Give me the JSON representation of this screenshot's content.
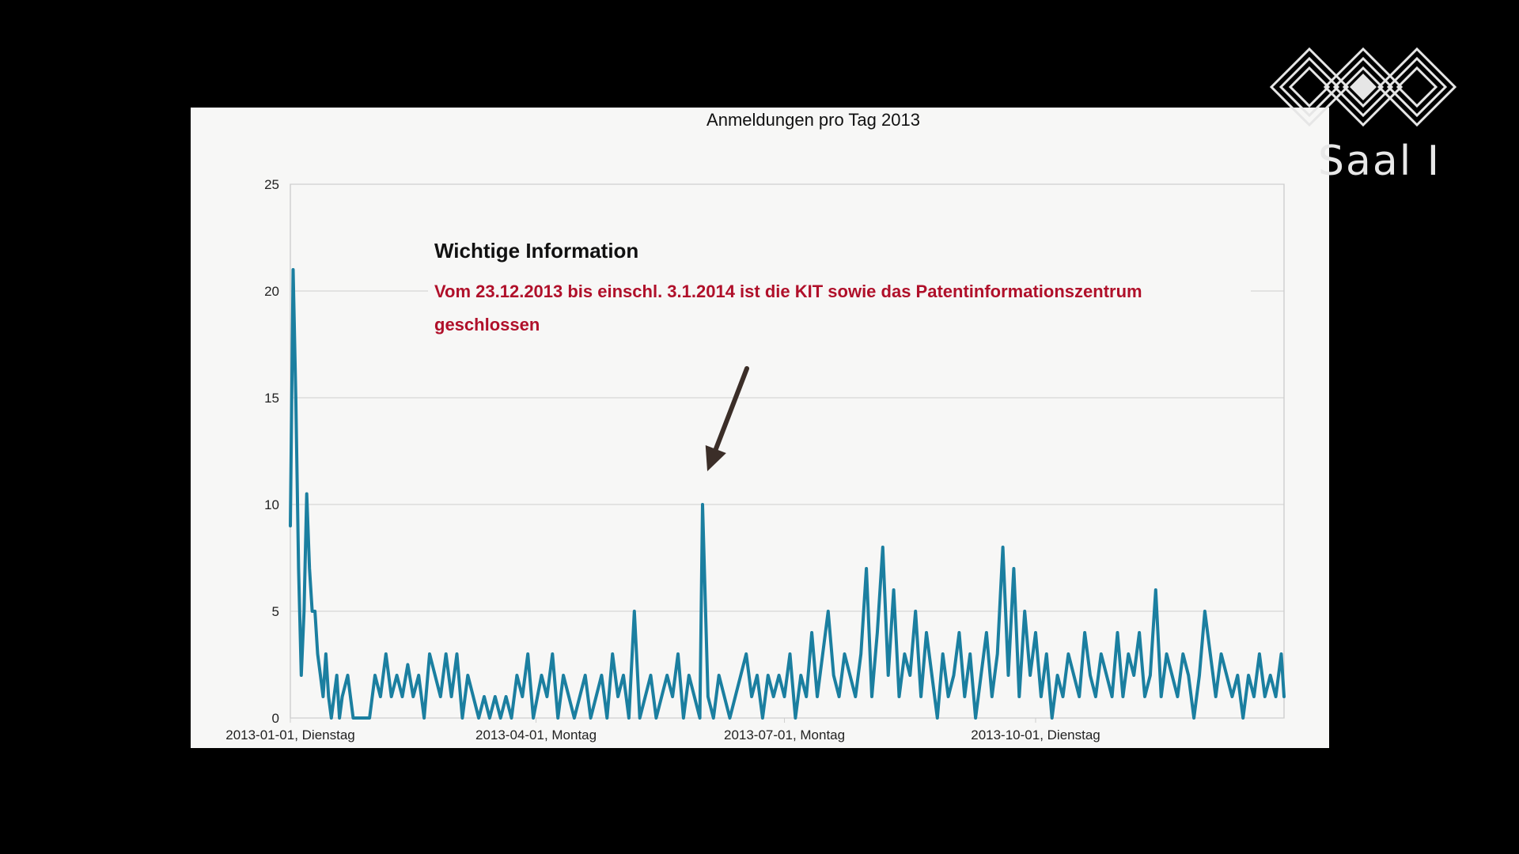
{
  "slide": {
    "room_label": "Saal I",
    "logo_icon": "event-logo-icon"
  },
  "annotation": {
    "heading": "Wichtige Information",
    "text_line1": "Vom 23.12.2013 bis einschl. 3.1.2014 ist die KIT sowie das Patentinformationszentrum",
    "text_line2": "geschlossen",
    "arrow_target": {
      "x": "2013-06-01",
      "y": 10
    }
  },
  "colors": {
    "series": "#1b7fa0",
    "annotation_text": "#b0102a",
    "arrow": "#3b2e28"
  },
  "chart_data": {
    "type": "line",
    "title": "Anmeldungen pro Tag 2013",
    "xlabel": "",
    "ylabel": "",
    "ylim": [
      0,
      25
    ],
    "yticks": [
      0,
      5,
      10,
      15,
      20,
      25
    ],
    "xlim": [
      "2013-01-01",
      "2013-12-31"
    ],
    "xticks": [
      {
        "date": "2013-01-01",
        "label": "2013-01-01, Dienstag"
      },
      {
        "date": "2013-04-01",
        "label": "2013-04-01, Montag"
      },
      {
        "date": "2013-07-01",
        "label": "2013-07-01, Montag"
      },
      {
        "date": "2013-10-01",
        "label": "2013-10-01, Dienstag"
      }
    ],
    "grid": true,
    "legend": "none",
    "series": [
      {
        "points": [
          [
            "2013-01-01",
            9
          ],
          [
            "2013-01-02",
            21
          ],
          [
            "2013-01-03",
            15
          ],
          [
            "2013-01-04",
            7
          ],
          [
            "2013-01-05",
            2
          ],
          [
            "2013-01-06",
            5
          ],
          [
            "2013-01-07",
            10.5
          ],
          [
            "2013-01-08",
            7
          ],
          [
            "2013-01-09",
            5
          ],
          [
            "2013-01-10",
            5
          ],
          [
            "2013-01-11",
            3
          ],
          [
            "2013-01-12",
            2
          ],
          [
            "2013-01-13",
            1
          ],
          [
            "2013-01-14",
            3
          ],
          [
            "2013-01-15",
            1
          ],
          [
            "2013-01-16",
            0
          ],
          [
            "2013-01-17",
            1
          ],
          [
            "2013-01-18",
            2
          ],
          [
            "2013-01-19",
            0
          ],
          [
            "2013-01-20",
            1
          ],
          [
            "2013-01-22",
            2
          ],
          [
            "2013-01-24",
            0
          ],
          [
            "2013-01-27",
            0
          ],
          [
            "2013-01-30",
            0
          ],
          [
            "2013-02-01",
            2
          ],
          [
            "2013-02-03",
            1
          ],
          [
            "2013-02-05",
            3
          ],
          [
            "2013-02-07",
            1
          ],
          [
            "2013-02-09",
            2
          ],
          [
            "2013-02-11",
            1
          ],
          [
            "2013-02-13",
            2.5
          ],
          [
            "2013-02-15",
            1
          ],
          [
            "2013-02-17",
            2
          ],
          [
            "2013-02-19",
            0
          ],
          [
            "2013-02-21",
            3
          ],
          [
            "2013-02-23",
            2
          ],
          [
            "2013-02-25",
            1
          ],
          [
            "2013-02-27",
            3
          ],
          [
            "2013-03-01",
            1
          ],
          [
            "2013-03-03",
            3
          ],
          [
            "2013-03-05",
            0
          ],
          [
            "2013-03-07",
            2
          ],
          [
            "2013-03-09",
            1
          ],
          [
            "2013-03-11",
            0
          ],
          [
            "2013-03-13",
            1
          ],
          [
            "2013-03-15",
            0
          ],
          [
            "2013-03-17",
            1
          ],
          [
            "2013-03-19",
            0
          ],
          [
            "2013-03-21",
            1
          ],
          [
            "2013-03-23",
            0
          ],
          [
            "2013-03-25",
            2
          ],
          [
            "2013-03-27",
            1
          ],
          [
            "2013-03-29",
            3
          ],
          [
            "2013-03-31",
            0
          ],
          [
            "2013-04-03",
            2
          ],
          [
            "2013-04-05",
            1
          ],
          [
            "2013-04-07",
            3
          ],
          [
            "2013-04-09",
            0
          ],
          [
            "2013-04-11",
            2
          ],
          [
            "2013-04-13",
            1
          ],
          [
            "2013-04-15",
            0
          ],
          [
            "2013-04-17",
            1
          ],
          [
            "2013-04-19",
            2
          ],
          [
            "2013-04-21",
            0
          ],
          [
            "2013-04-23",
            1
          ],
          [
            "2013-04-25",
            2
          ],
          [
            "2013-04-27",
            0
          ],
          [
            "2013-04-29",
            3
          ],
          [
            "2013-05-01",
            1
          ],
          [
            "2013-05-03",
            2
          ],
          [
            "2013-05-05",
            0
          ],
          [
            "2013-05-07",
            5
          ],
          [
            "2013-05-09",
            0
          ],
          [
            "2013-05-11",
            1
          ],
          [
            "2013-05-13",
            2
          ],
          [
            "2013-05-15",
            0
          ],
          [
            "2013-05-17",
            1
          ],
          [
            "2013-05-19",
            2
          ],
          [
            "2013-05-21",
            1
          ],
          [
            "2013-05-23",
            3
          ],
          [
            "2013-05-25",
            0
          ],
          [
            "2013-05-27",
            2
          ],
          [
            "2013-05-29",
            1
          ],
          [
            "2013-05-31",
            0
          ],
          [
            "2013-06-01",
            10
          ],
          [
            "2013-06-03",
            1
          ],
          [
            "2013-06-05",
            0
          ],
          [
            "2013-06-07",
            2
          ],
          [
            "2013-06-09",
            1
          ],
          [
            "2013-06-11",
            0
          ],
          [
            "2013-06-13",
            1
          ],
          [
            "2013-06-15",
            2
          ],
          [
            "2013-06-17",
            3
          ],
          [
            "2013-06-19",
            1
          ],
          [
            "2013-06-21",
            2
          ],
          [
            "2013-06-23",
            0
          ],
          [
            "2013-06-25",
            2
          ],
          [
            "2013-06-27",
            1
          ],
          [
            "2013-06-29",
            2
          ],
          [
            "2013-07-01",
            1
          ],
          [
            "2013-07-03",
            3
          ],
          [
            "2013-07-05",
            0
          ],
          [
            "2013-07-07",
            2
          ],
          [
            "2013-07-09",
            1
          ],
          [
            "2013-07-11",
            4
          ],
          [
            "2013-07-13",
            1
          ],
          [
            "2013-07-15",
            3
          ],
          [
            "2013-07-17",
            5
          ],
          [
            "2013-07-19",
            2
          ],
          [
            "2013-07-21",
            1
          ],
          [
            "2013-07-23",
            3
          ],
          [
            "2013-07-25",
            2
          ],
          [
            "2013-07-27",
            1
          ],
          [
            "2013-07-29",
            3
          ],
          [
            "2013-07-31",
            7
          ],
          [
            "2013-08-02",
            1
          ],
          [
            "2013-08-04",
            4
          ],
          [
            "2013-08-06",
            8
          ],
          [
            "2013-08-08",
            2
          ],
          [
            "2013-08-10",
            6
          ],
          [
            "2013-08-12",
            1
          ],
          [
            "2013-08-14",
            3
          ],
          [
            "2013-08-16",
            2
          ],
          [
            "2013-08-18",
            5
          ],
          [
            "2013-08-20",
            1
          ],
          [
            "2013-08-22",
            4
          ],
          [
            "2013-08-24",
            2
          ],
          [
            "2013-08-26",
            0
          ],
          [
            "2013-08-28",
            3
          ],
          [
            "2013-08-30",
            1
          ],
          [
            "2013-09-01",
            2
          ],
          [
            "2013-09-03",
            4
          ],
          [
            "2013-09-05",
            1
          ],
          [
            "2013-09-07",
            3
          ],
          [
            "2013-09-09",
            0
          ],
          [
            "2013-09-11",
            2
          ],
          [
            "2013-09-13",
            4
          ],
          [
            "2013-09-15",
            1
          ],
          [
            "2013-09-17",
            3
          ],
          [
            "2013-09-19",
            8
          ],
          [
            "2013-09-21",
            2
          ],
          [
            "2013-09-23",
            7
          ],
          [
            "2013-09-25",
            1
          ],
          [
            "2013-09-27",
            5
          ],
          [
            "2013-09-29",
            2
          ],
          [
            "2013-10-01",
            4
          ],
          [
            "2013-10-03",
            1
          ],
          [
            "2013-10-05",
            3
          ],
          [
            "2013-10-07",
            0
          ],
          [
            "2013-10-09",
            2
          ],
          [
            "2013-10-11",
            1
          ],
          [
            "2013-10-13",
            3
          ],
          [
            "2013-10-15",
            2
          ],
          [
            "2013-10-17",
            1
          ],
          [
            "2013-10-19",
            4
          ],
          [
            "2013-10-21",
            2
          ],
          [
            "2013-10-23",
            1
          ],
          [
            "2013-10-25",
            3
          ],
          [
            "2013-10-27",
            2
          ],
          [
            "2013-10-29",
            1
          ],
          [
            "2013-10-31",
            4
          ],
          [
            "2013-11-02",
            1
          ],
          [
            "2013-11-04",
            3
          ],
          [
            "2013-11-06",
            2
          ],
          [
            "2013-11-08",
            4
          ],
          [
            "2013-11-10",
            1
          ],
          [
            "2013-11-12",
            2
          ],
          [
            "2013-11-14",
            6
          ],
          [
            "2013-11-16",
            1
          ],
          [
            "2013-11-18",
            3
          ],
          [
            "2013-11-20",
            2
          ],
          [
            "2013-11-22",
            1
          ],
          [
            "2013-11-24",
            3
          ],
          [
            "2013-11-26",
            2
          ],
          [
            "2013-11-28",
            0
          ],
          [
            "2013-11-30",
            2
          ],
          [
            "2013-12-02",
            5
          ],
          [
            "2013-12-04",
            3
          ],
          [
            "2013-12-06",
            1
          ],
          [
            "2013-12-08",
            3
          ],
          [
            "2013-12-10",
            2
          ],
          [
            "2013-12-12",
            1
          ],
          [
            "2013-12-14",
            2
          ],
          [
            "2013-12-16",
            0
          ],
          [
            "2013-12-18",
            2
          ],
          [
            "2013-12-20",
            1
          ],
          [
            "2013-12-22",
            3
          ],
          [
            "2013-12-24",
            1
          ],
          [
            "2013-12-26",
            2
          ],
          [
            "2013-12-28",
            1
          ],
          [
            "2013-12-30",
            3
          ],
          [
            "2013-12-31",
            1
          ]
        ]
      }
    ]
  }
}
